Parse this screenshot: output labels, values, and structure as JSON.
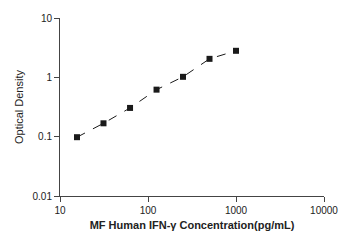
{
  "chart_data": {
    "type": "line",
    "x": [
      15.6,
      31.2,
      62.5,
      125,
      250,
      500,
      1000
    ],
    "values": [
      0.098,
      0.168,
      0.305,
      0.62,
      1.02,
      2.05,
      2.8
    ],
    "xlabel": "MF Human IFN-γ Concentration(pg/mL)",
    "ylabel": "Optical Density",
    "color": "#1a1a1a",
    "marker": "square",
    "line_style": "dashed",
    "log": true,
    "xlim": [
      10,
      10000
    ],
    "ylim": [
      0.01,
      10
    ],
    "xticks": [
      10,
      100,
      1000,
      10000
    ],
    "yticks": [
      0.01,
      0.1,
      1,
      10
    ],
    "grid": false
  }
}
